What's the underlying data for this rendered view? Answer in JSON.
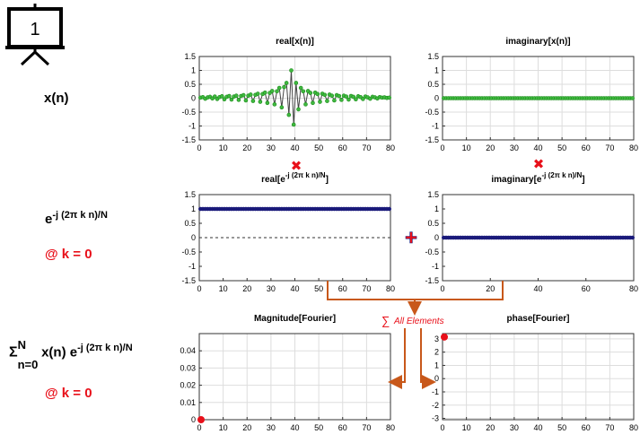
{
  "slide": {
    "number": "1"
  },
  "left_labels": {
    "row1": "x(n)",
    "row2_base": "e",
    "row2_sup": "-j (2π k n)/N",
    "row2_k": "@ k = 0",
    "row3_sigma": "Σ",
    "row3_sup": "N",
    "row3_sub": "n=0",
    "row3_term": "x(n) e",
    "row3_term_sup": "-j (2π k n)/N",
    "row3_k": "@ k = 0"
  },
  "operators": {
    "multiply": "✖",
    "plus": "+"
  },
  "sum_annotation": {
    "symbol": "∑",
    "text": "All Elements"
  },
  "colors": {
    "accent_red": "#e8101a",
    "arrow_orange": "#c8581a",
    "green_marker": "#1a8a1a",
    "navy_marker": "#1a1a7a",
    "grid": "#dddddd"
  },
  "chart_data": [
    {
      "id": "real-x",
      "type": "line",
      "title": "real[x(n)]",
      "xlim": [
        0,
        80
      ],
      "ylim": [
        -1.5,
        1.5
      ],
      "xticks": [
        0,
        10,
        20,
        30,
        40,
        50,
        60,
        70,
        80
      ],
      "yticks": [
        1.5,
        1,
        0.5,
        0,
        -0.5,
        -1,
        -1.5
      ],
      "ytick_labels": [
        "1.5",
        "1",
        "0.5",
        "0",
        "-0.5",
        "-1",
        "-1.5"
      ],
      "grid": true,
      "marker": "green-circle",
      "series": [
        {
          "x": [
            0,
            1,
            2,
            3,
            4,
            5,
            6,
            7,
            8,
            9,
            10,
            11,
            12,
            13,
            14,
            15,
            16,
            17,
            18,
            19,
            20,
            21,
            22,
            23,
            24,
            25,
            26,
            27,
            28,
            29,
            30,
            31,
            32,
            33,
            34,
            35,
            36,
            37,
            38,
            39,
            40,
            41,
            42,
            43,
            44,
            45,
            46,
            47,
            48,
            49,
            50,
            51,
            52,
            53,
            54,
            55,
            56,
            57,
            58,
            59,
            60,
            61,
            62,
            63,
            64,
            65,
            66,
            67,
            68,
            69,
            70,
            71,
            72,
            73,
            74,
            75,
            76,
            77,
            78,
            79
          ],
          "y": [
            0.02,
            0.04,
            -0.02,
            0.03,
            0.05,
            -0.01,
            0.06,
            -0.03,
            0.04,
            0.07,
            -0.04,
            0.05,
            0.08,
            -0.05,
            0.06,
            0.09,
            -0.06,
            0.08,
            0.11,
            -0.08,
            0.09,
            0.13,
            -0.1,
            0.12,
            0.16,
            -0.13,
            0.15,
            0.2,
            -0.17,
            0.19,
            0.26,
            -0.22,
            0.25,
            0.37,
            -0.33,
            0.4,
            0.55,
            -0.6,
            1.0,
            -0.95,
            0.55,
            -0.4,
            0.37,
            0.25,
            -0.22,
            0.26,
            0.19,
            -0.17,
            0.2,
            0.15,
            -0.13,
            0.16,
            0.12,
            -0.1,
            0.13,
            0.09,
            -0.08,
            0.11,
            0.08,
            -0.06,
            0.09,
            0.06,
            -0.05,
            0.08,
            0.05,
            -0.04,
            0.07,
            0.04,
            -0.03,
            0.06,
            0.03,
            -0.02,
            0.05,
            0.03,
            -0.01,
            0.04,
            0.02,
            0.03,
            0.01,
            0.02
          ]
        }
      ]
    },
    {
      "id": "imag-x",
      "type": "line",
      "title": "imaginary[x(n)]",
      "xlim": [
        0,
        80
      ],
      "ylim": [
        -1.5,
        1.5
      ],
      "xticks": [
        0,
        10,
        20,
        30,
        40,
        50,
        60,
        70,
        80
      ],
      "yticks": [
        1.5,
        1,
        0.5,
        0,
        -0.5,
        -1,
        -1.5
      ],
      "ytick_labels": [
        "1.5",
        "1",
        "0.5",
        "0",
        "-0.5",
        "-1",
        "-1.5"
      ],
      "grid": true,
      "marker": "green-circle",
      "series": [
        {
          "x_range": [
            0,
            79
          ],
          "constant": 0
        }
      ]
    },
    {
      "id": "real-e",
      "type": "line",
      "title": "real[e",
      "title_sup": "-j (2π k n)/N",
      "title_end": "]",
      "xlim": [
        0,
        80
      ],
      "ylim": [
        -1.5,
        1.5
      ],
      "xticks": [
        0,
        10,
        20,
        30,
        40,
        50,
        60,
        70,
        80
      ],
      "yticks": [
        1.5,
        1,
        0.5,
        0,
        -0.5,
        -1,
        -1.5
      ],
      "ytick_labels": [
        "1.5",
        "1",
        "0.5",
        "0",
        "-0.5",
        "-1",
        "-1.5"
      ],
      "grid": false,
      "zero_line": "dashed",
      "marker": "navy-circle",
      "series": [
        {
          "x_range": [
            0,
            79
          ],
          "constant": 1
        }
      ]
    },
    {
      "id": "imag-e",
      "type": "line",
      "title": "imaginary[e",
      "title_sup": "-j (2π k n)/N",
      "title_end": "]",
      "xlim": [
        0,
        80
      ],
      "ylim": [
        -1.5,
        1.5
      ],
      "xticks": [
        0,
        20,
        40,
        60,
        80
      ],
      "yticks": [
        1.5,
        1,
        0.5,
        0,
        -0.5,
        -1,
        -1.5
      ],
      "ytick_labels": [
        "1.5",
        "1",
        "0.5",
        "0",
        "-0.5",
        "-1",
        "-1.5"
      ],
      "grid": false,
      "zero_line": "dashed",
      "marker": "navy-circle",
      "series": [
        {
          "x_range": [
            0,
            79
          ],
          "constant": 0
        }
      ]
    },
    {
      "id": "mag",
      "type": "line",
      "title": "Magnitude[Fourier]",
      "xlim": [
        0,
        80
      ],
      "ylim": [
        0,
        0.05
      ],
      "xticks": [
        0,
        10,
        20,
        30,
        40,
        50,
        60,
        70,
        80
      ],
      "yticks": [
        0.04,
        0.03,
        0.02,
        0.01,
        0
      ],
      "ytick_labels": [
        "0.04",
        "0.03",
        "0.02",
        "0.01",
        "0"
      ],
      "grid": true,
      "series": [
        {
          "x": [
            0
          ],
          "y": [
            0
          ],
          "marker": "red-dot"
        }
      ]
    },
    {
      "id": "phase",
      "type": "line",
      "title": "phase[Fourier]",
      "xlim": [
        0,
        80
      ],
      "ylim": [
        -3.1,
        3.4
      ],
      "xticks": [
        0,
        10,
        20,
        30,
        40,
        50,
        60,
        70,
        80
      ],
      "yticks": [
        3,
        2,
        1,
        0,
        -1,
        -2,
        -3
      ],
      "ytick_labels": [
        "3",
        "2",
        "1",
        "0",
        "-1",
        "-2",
        "-3"
      ],
      "grid": true,
      "series": [
        {
          "x": [
            0
          ],
          "y": [
            3.14
          ],
          "marker": "red-dot"
        }
      ]
    }
  ]
}
